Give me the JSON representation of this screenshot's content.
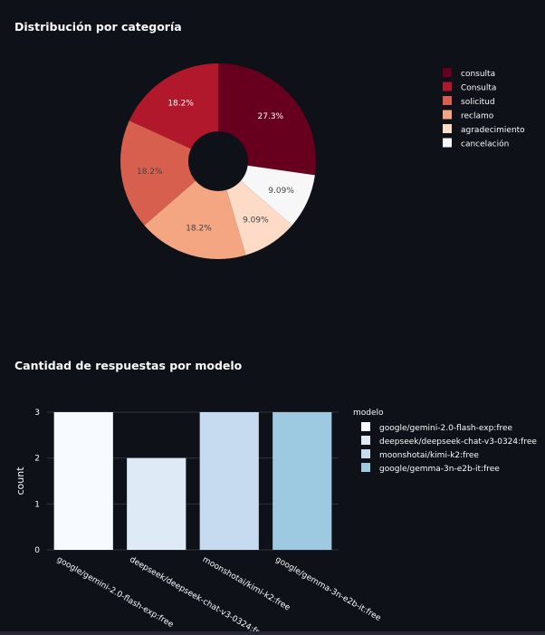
{
  "chart_data": [
    {
      "type": "pie",
      "title": "Distribución por categoría",
      "hole": true,
      "legend_position": "right",
      "slices": [
        {
          "label": "consulta",
          "value": 27.3,
          "text": "27.3%",
          "color": "#67001f"
        },
        {
          "label": "cancelación",
          "value": 9.09,
          "text": "9.09%",
          "color": "#f7f7f7"
        },
        {
          "label": "agradecimiento",
          "value": 9.09,
          "text": "9.09%",
          "color": "#fddbc7"
        },
        {
          "label": "reclamo",
          "value": 18.2,
          "text": "18.2%",
          "color": "#f4a582"
        },
        {
          "label": "solicitud",
          "value": 18.2,
          "text": "18.2%",
          "color": "#d6604d"
        },
        {
          "label": "Consulta",
          "value": 18.2,
          "text": "18.2%",
          "color": "#b2182b"
        }
      ],
      "legend": [
        "consulta",
        "Consulta",
        "solicitud",
        "reclamo",
        "agradecimiento",
        "cancelación"
      ]
    },
    {
      "type": "bar",
      "title": "Cantidad de respuestas por modelo",
      "ylabel": "count",
      "ylim": [
        0,
        3
      ],
      "yticks": [
        "0",
        "1",
        "2",
        "3"
      ],
      "legend_title": "modelo",
      "legend_position": "right",
      "grid": true,
      "categories": [
        "google/gemini-2.0-flash-exp:free",
        "deepseek/deepseek-chat-v3-0324:free",
        "moonshotai/kimi-k2:free",
        "google/gemma-3n-e2b-it:free"
      ],
      "values": [
        3,
        2,
        3,
        3
      ],
      "colors": [
        "#f7fbff",
        "#deebf7",
        "#c6dbef",
        "#9ecae1"
      ]
    }
  ]
}
